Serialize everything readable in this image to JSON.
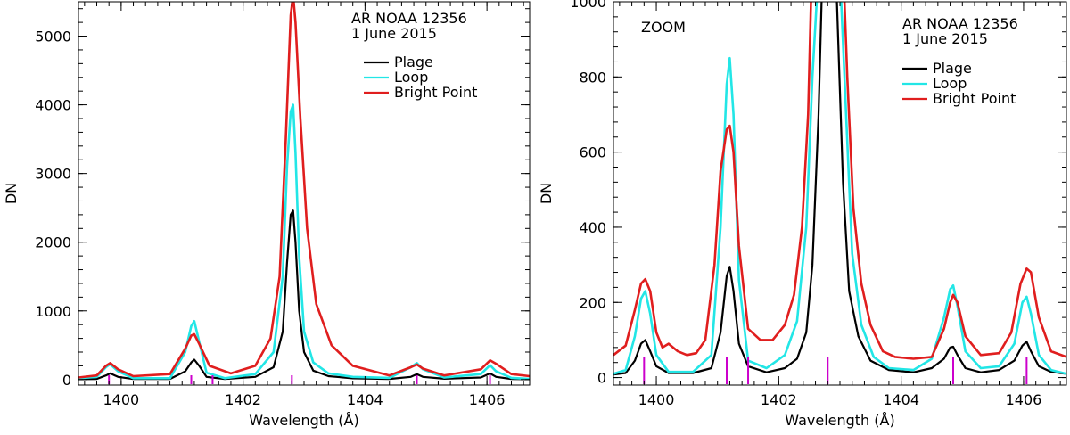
{
  "chart_data": [
    {
      "type": "line",
      "panel": "left",
      "annotation": [
        "AR NOAA 12356",
        "1 June 2015"
      ],
      "xlabel": "Wavelength (Å)",
      "ylabel": "DN",
      "xlim": [
        1399.3,
        1406.7
      ],
      "ylim": [
        -80,
        5500
      ],
      "xticks": [
        1400,
        1402,
        1404,
        1406
      ],
      "yticks": [
        0,
        1000,
        2000,
        3000,
        4000,
        5000
      ],
      "legend_position": "top-right",
      "series": [
        {
          "name": "Plage",
          "color": "#000000",
          "x": [
            1399.3,
            1399.6,
            1399.75,
            1399.82,
            1399.95,
            1400.2,
            1400.8,
            1401.05,
            1401.15,
            1401.2,
            1401.28,
            1401.4,
            1401.7,
            1402.2,
            1402.5,
            1402.65,
            1402.72,
            1402.78,
            1402.82,
            1402.86,
            1402.92,
            1403.0,
            1403.15,
            1403.4,
            1403.8,
            1404.4,
            1404.75,
            1404.85,
            1404.95,
            1405.3,
            1405.9,
            1406.05,
            1406.15,
            1406.4,
            1406.7
          ],
          "y": [
            5,
            10,
            60,
            90,
            40,
            8,
            10,
            120,
            250,
            290,
            200,
            40,
            10,
            40,
            180,
            700,
            1700,
            2400,
            2460,
            2000,
            1000,
            400,
            130,
            50,
            18,
            10,
            40,
            80,
            40,
            12,
            30,
            90,
            40,
            10,
            5
          ]
        },
        {
          "name": "Loop",
          "color": "#22e6e6",
          "x": [
            1399.3,
            1399.6,
            1399.75,
            1399.82,
            1399.95,
            1400.2,
            1400.8,
            1401.05,
            1401.15,
            1401.2,
            1401.28,
            1401.4,
            1401.7,
            1402.2,
            1402.5,
            1402.65,
            1402.72,
            1402.78,
            1402.82,
            1402.86,
            1402.92,
            1403.0,
            1403.15,
            1403.4,
            1403.8,
            1404.4,
            1404.75,
            1404.85,
            1404.95,
            1405.3,
            1405.9,
            1406.05,
            1406.15,
            1406.4,
            1406.7
          ],
          "y": [
            20,
            40,
            180,
            225,
            120,
            20,
            20,
            400,
            780,
            850,
            550,
            100,
            20,
            80,
            400,
            1500,
            3100,
            3900,
            4000,
            3300,
            1800,
            700,
            250,
            90,
            40,
            25,
            180,
            240,
            150,
            30,
            80,
            210,
            120,
            25,
            10
          ]
        },
        {
          "name": "Bright Point",
          "color": "#e01e1e",
          "x": [
            1399.3,
            1399.6,
            1399.75,
            1399.82,
            1399.95,
            1400.2,
            1400.8,
            1401.05,
            1401.15,
            1401.2,
            1401.28,
            1401.45,
            1401.8,
            1402.2,
            1402.45,
            1402.6,
            1402.7,
            1402.78,
            1402.82,
            1402.86,
            1402.94,
            1403.05,
            1403.2,
            1403.45,
            1403.8,
            1404.4,
            1404.75,
            1404.85,
            1404.95,
            1405.3,
            1405.9,
            1406.05,
            1406.15,
            1406.4,
            1406.7
          ],
          "y": [
            30,
            60,
            200,
            240,
            150,
            50,
            80,
            450,
            640,
            660,
            520,
            200,
            90,
            200,
            600,
            1500,
            3500,
            5300,
            5600,
            5200,
            3800,
            2200,
            1100,
            500,
            200,
            60,
            180,
            220,
            160,
            60,
            150,
            280,
            230,
            80,
            50
          ]
        }
      ],
      "line_markers": {
        "color": "#cc00cc",
        "x": [
          1399.8,
          1401.15,
          1401.5,
          1402.8,
          1404.85,
          1406.05
        ]
      }
    },
    {
      "type": "line",
      "panel": "right",
      "annotation": [
        "AR NOAA 12356",
        "1 June 2015"
      ],
      "label": "ZOOM",
      "xlabel": "Wavelength (Å)",
      "ylabel": "DN",
      "xlim": [
        1399.3,
        1406.7
      ],
      "ylim": [
        -20,
        1000
      ],
      "xticks": [
        1400,
        1402,
        1404,
        1406
      ],
      "yticks": [
        0,
        200,
        400,
        600,
        800,
        1000
      ],
      "legend_position": "top-right",
      "series": [
        {
          "name": "Plage",
          "color": "#000000",
          "x": [
            1399.3,
            1399.5,
            1399.65,
            1399.75,
            1399.82,
            1399.9,
            1400.0,
            1400.2,
            1400.6,
            1400.9,
            1401.05,
            1401.15,
            1401.2,
            1401.26,
            1401.35,
            1401.5,
            1401.8,
            1402.1,
            1402.3,
            1402.45,
            1402.55,
            1402.65,
            1402.7,
            1402.72,
            1402.93,
            1402.95,
            1403.05,
            1403.15,
            1403.3,
            1403.5,
            1403.8,
            1404.2,
            1404.5,
            1404.7,
            1404.8,
            1404.85,
            1404.92,
            1405.05,
            1405.3,
            1405.6,
            1405.85,
            1405.98,
            1406.05,
            1406.12,
            1406.25,
            1406.45,
            1406.7
          ],
          "y": [
            8,
            12,
            45,
            90,
            100,
            70,
            30,
            12,
            12,
            25,
            120,
            270,
            295,
            230,
            90,
            30,
            14,
            25,
            50,
            120,
            300,
            700,
            1000,
            1020,
            1020,
            1000,
            520,
            230,
            110,
            45,
            20,
            14,
            25,
            50,
            80,
            82,
            60,
            25,
            14,
            20,
            45,
            85,
            95,
            70,
            30,
            15,
            10
          ]
        },
        {
          "name": "Loop",
          "color": "#22e6e6",
          "x": [
            1399.3,
            1399.5,
            1399.65,
            1399.75,
            1399.82,
            1399.9,
            1400.0,
            1400.2,
            1400.6,
            1400.9,
            1401.05,
            1401.15,
            1401.2,
            1401.26,
            1401.35,
            1401.5,
            1401.8,
            1402.1,
            1402.3,
            1402.45,
            1402.55,
            1402.62,
            1402.66,
            1402.98,
            1403.02,
            1403.1,
            1403.2,
            1403.35,
            1403.55,
            1403.8,
            1404.2,
            1404.5,
            1404.7,
            1404.8,
            1404.85,
            1404.92,
            1405.05,
            1405.3,
            1405.6,
            1405.85,
            1405.98,
            1406.05,
            1406.12,
            1406.25,
            1406.45,
            1406.7
          ],
          "y": [
            10,
            20,
            110,
            210,
            230,
            170,
            60,
            15,
            15,
            60,
            400,
            780,
            850,
            700,
            260,
            45,
            25,
            60,
            150,
            400,
            800,
            1000,
            1020,
            1020,
            1000,
            700,
            330,
            140,
            55,
            25,
            20,
            50,
            160,
            235,
            245,
            190,
            70,
            25,
            30,
            90,
            200,
            215,
            170,
            60,
            20,
            10
          ]
        },
        {
          "name": "Bright Point",
          "color": "#e01e1e",
          "x": [
            1399.3,
            1399.5,
            1399.65,
            1399.75,
            1399.82,
            1399.9,
            1400.0,
            1400.1,
            1400.2,
            1400.35,
            1400.5,
            1400.65,
            1400.8,
            1400.95,
            1401.05,
            1401.15,
            1401.2,
            1401.26,
            1401.35,
            1401.5,
            1401.7,
            1401.9,
            1402.1,
            1402.25,
            1402.38,
            1402.48,
            1402.53,
            1403.07,
            1403.12,
            1403.22,
            1403.35,
            1403.5,
            1403.7,
            1403.9,
            1404.2,
            1404.5,
            1404.7,
            1404.8,
            1404.85,
            1404.92,
            1405.05,
            1405.3,
            1405.6,
            1405.8,
            1405.95,
            1406.05,
            1406.12,
            1406.25,
            1406.45,
            1406.7
          ],
          "y": [
            60,
            85,
            180,
            250,
            262,
            230,
            120,
            80,
            90,
            70,
            60,
            65,
            100,
            300,
            550,
            660,
            670,
            600,
            350,
            130,
            100,
            100,
            140,
            220,
            400,
            700,
            1020,
            1020,
            800,
            450,
            250,
            140,
            70,
            55,
            50,
            55,
            130,
            200,
            220,
            200,
            110,
            60,
            65,
            120,
            250,
            290,
            280,
            160,
            70,
            55
          ]
        }
      ],
      "line_markers": {
        "color": "#cc00cc",
        "x": [
          1399.8,
          1401.15,
          1401.5,
          1402.8,
          1404.85,
          1406.05
        ]
      }
    }
  ]
}
